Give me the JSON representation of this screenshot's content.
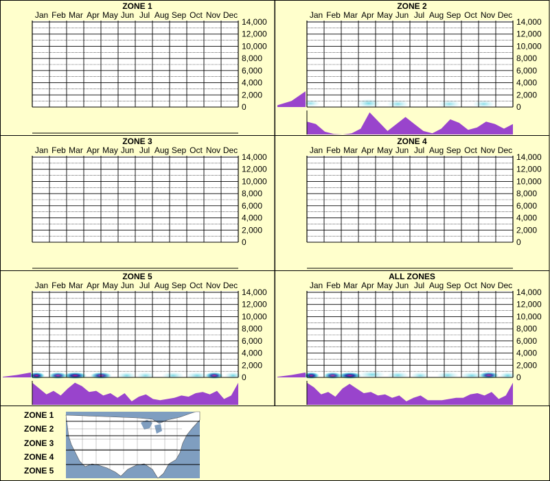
{
  "colors": {
    "background": "#ffffcc",
    "grid": "#000000",
    "profile_fill": "#9944cc",
    "density_light": "#aee9f0",
    "density_mid": "#33c4d8",
    "density_dark": "#1133aa",
    "density_hot": "#cc1188",
    "map_water": "#7f9ec0",
    "map_land": "#ffffff"
  },
  "months": [
    "Jan",
    "Feb",
    "Mar",
    "Apr",
    "May",
    "Jun",
    "Jul",
    "Aug",
    "Sep",
    "Oct",
    "Nov",
    "Dec"
  ],
  "y_ticks": [
    "14,000",
    "12,000",
    "10,000",
    "8,000",
    "6,000",
    "4,000",
    "2,000",
    "0"
  ],
  "chart_data": [
    {
      "type": "heatmap",
      "title": "ZONE 1",
      "categories": [
        "Jan",
        "Feb",
        "Mar",
        "Apr",
        "May",
        "Jun",
        "Jul",
        "Aug",
        "Sep",
        "Oct",
        "Nov",
        "Dec"
      ],
      "ylim": [
        0,
        14000
      ],
      "has_data": false
    },
    {
      "type": "heatmap",
      "title": "ZONE 2",
      "categories": [
        "Jan",
        "Feb",
        "Mar",
        "Apr",
        "May",
        "Jun",
        "Jul",
        "Aug",
        "Sep",
        "Oct",
        "Nov",
        "Dec"
      ],
      "ylim": [
        0,
        14000
      ],
      "has_data": true,
      "density_blobs": [
        {
          "x": 0.2,
          "y": 600,
          "w": 0.6,
          "h": 500,
          "intensity": 0.35
        },
        {
          "x": 3.6,
          "y": 600,
          "w": 0.9,
          "h": 700,
          "intensity": 0.6
        },
        {
          "x": 5.3,
          "y": 500,
          "w": 0.8,
          "h": 600,
          "intensity": 0.45
        },
        {
          "x": 8.3,
          "y": 500,
          "w": 0.8,
          "h": 600,
          "intensity": 0.4
        },
        {
          "x": 10.3,
          "y": 500,
          "w": 0.8,
          "h": 600,
          "intensity": 0.4
        }
      ],
      "elevation_profile": [
        0.3,
        1.0,
        2.6
      ],
      "month_profile": [
        0.55,
        0.45,
        0.12,
        0.02,
        0.0,
        0.05,
        0.25,
        0.95,
        0.55,
        0.15,
        0.45,
        0.75,
        0.45,
        0.15,
        0.05,
        0.25,
        0.65,
        0.5,
        0.2,
        0.3,
        0.55,
        0.45,
        0.25,
        0.45
      ]
    },
    {
      "type": "heatmap",
      "title": "ZONE 3",
      "categories": [
        "Jan",
        "Feb",
        "Mar",
        "Apr",
        "May",
        "Jun",
        "Jul",
        "Aug",
        "Sep",
        "Oct",
        "Nov",
        "Dec"
      ],
      "ylim": [
        0,
        14000
      ],
      "has_data": false
    },
    {
      "type": "heatmap",
      "title": "ZONE 4",
      "categories": [
        "Jan",
        "Feb",
        "Mar",
        "Apr",
        "May",
        "Jun",
        "Jul",
        "Aug",
        "Sep",
        "Oct",
        "Nov",
        "Dec"
      ],
      "ylim": [
        0,
        14000
      ],
      "has_data": false
    },
    {
      "type": "heatmap",
      "title": "ZONE 5",
      "categories": [
        "Jan",
        "Feb",
        "Mar",
        "Apr",
        "May",
        "Jun",
        "Jul",
        "Aug",
        "Sep",
        "Oct",
        "Nov",
        "Dec"
      ],
      "ylim": [
        0,
        14000
      ],
      "has_data": true,
      "density_blobs": [
        {
          "x": 0.25,
          "y": 300,
          "w": 0.5,
          "h": 400,
          "intensity": 1.0
        },
        {
          "x": 1.5,
          "y": 300,
          "w": 0.6,
          "h": 400,
          "intensity": 0.8
        },
        {
          "x": 2.5,
          "y": 300,
          "w": 0.9,
          "h": 400,
          "intensity": 1.0
        },
        {
          "x": 4.0,
          "y": 300,
          "w": 0.8,
          "h": 400,
          "intensity": 0.8
        },
        {
          "x": 5.5,
          "y": 300,
          "w": 0.6,
          "h": 400,
          "intensity": 0.6
        },
        {
          "x": 6.6,
          "y": 300,
          "w": 0.6,
          "h": 400,
          "intensity": 0.5
        },
        {
          "x": 8.2,
          "y": 300,
          "w": 0.8,
          "h": 400,
          "intensity": 0.55
        },
        {
          "x": 9.6,
          "y": 300,
          "w": 0.8,
          "h": 400,
          "intensity": 0.6
        },
        {
          "x": 10.6,
          "y": 300,
          "w": 0.6,
          "h": 400,
          "intensity": 0.85
        },
        {
          "x": 11.7,
          "y": 300,
          "w": 0.5,
          "h": 400,
          "intensity": 0.7
        }
      ],
      "elevation_profile": [
        0.1,
        0.4,
        0.8
      ],
      "month_profile": [
        0.95,
        0.7,
        0.45,
        0.6,
        0.4,
        0.7,
        0.95,
        0.8,
        0.55,
        0.6,
        0.4,
        0.5,
        0.3,
        0.5,
        0.15,
        0.35,
        0.45,
        0.25,
        0.2,
        0.25,
        0.3,
        0.4,
        0.35,
        0.5,
        0.55,
        0.45,
        0.6,
        0.25,
        0.4,
        0.95
      ]
    },
    {
      "type": "heatmap",
      "title": "ALL ZONES",
      "categories": [
        "Jan",
        "Feb",
        "Mar",
        "Apr",
        "May",
        "Jun",
        "Jul",
        "Aug",
        "Sep",
        "Oct",
        "Nov",
        "Dec"
      ],
      "ylim": [
        0,
        14000
      ],
      "has_data": true,
      "density_blobs": [
        {
          "x": 0.25,
          "y": 300,
          "w": 0.5,
          "h": 400,
          "intensity": 1.0
        },
        {
          "x": 1.5,
          "y": 300,
          "w": 0.6,
          "h": 400,
          "intensity": 0.8
        },
        {
          "x": 2.5,
          "y": 300,
          "w": 0.9,
          "h": 400,
          "intensity": 1.0
        },
        {
          "x": 3.8,
          "y": 450,
          "w": 1.0,
          "h": 600,
          "intensity": 0.6
        },
        {
          "x": 5.3,
          "y": 350,
          "w": 0.8,
          "h": 500,
          "intensity": 0.6
        },
        {
          "x": 6.6,
          "y": 300,
          "w": 0.6,
          "h": 400,
          "intensity": 0.5
        },
        {
          "x": 8.2,
          "y": 350,
          "w": 0.8,
          "h": 500,
          "intensity": 0.55
        },
        {
          "x": 9.6,
          "y": 300,
          "w": 0.8,
          "h": 400,
          "intensity": 0.6
        },
        {
          "x": 10.6,
          "y": 350,
          "w": 0.7,
          "h": 500,
          "intensity": 0.85
        },
        {
          "x": 11.7,
          "y": 300,
          "w": 0.5,
          "h": 400,
          "intensity": 0.7
        }
      ],
      "elevation_profile": [
        0.1,
        0.4,
        0.8
      ],
      "month_profile": [
        0.95,
        0.75,
        0.45,
        0.55,
        0.35,
        0.7,
        0.9,
        0.7,
        0.5,
        0.55,
        0.4,
        0.45,
        0.3,
        0.4,
        0.15,
        0.3,
        0.4,
        0.2,
        0.2,
        0.2,
        0.25,
        0.3,
        0.3,
        0.45,
        0.5,
        0.4,
        0.55,
        0.25,
        0.4,
        0.95
      ]
    }
  ],
  "legend": {
    "zones": [
      "ZONE 1",
      "ZONE 2",
      "ZONE 3",
      "ZONE 4",
      "ZONE 5"
    ],
    "map_icon": "us-map-icon"
  }
}
